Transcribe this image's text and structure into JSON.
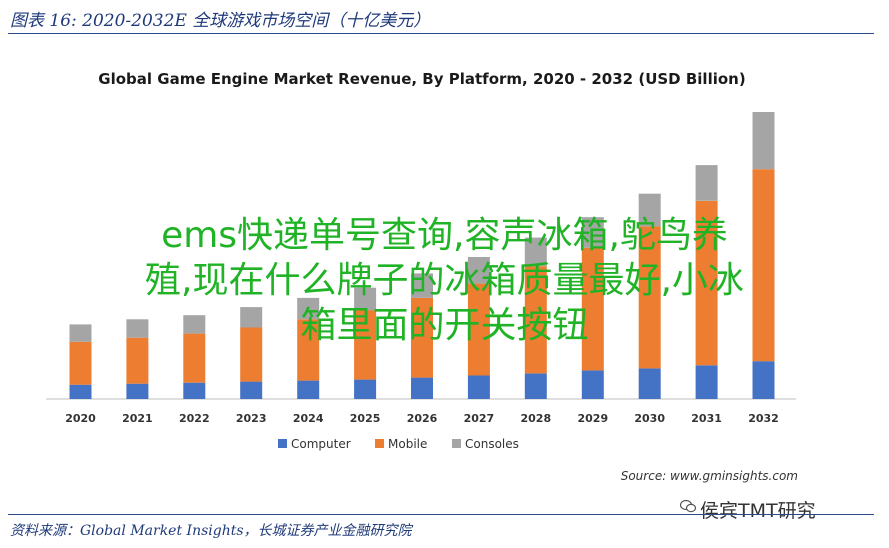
{
  "caption": "图表 16:  2020-2032E 全球游戏市场空间（十亿美元）",
  "source_note": "资料来源：Global Market Insights，长城证券产业金融研究院",
  "overlay": {
    "line1": "ems快递单号查询,容声冰箱,鸵鸟养",
    "line2": "殖,现在什么牌子的冰箱质量最好,小冰",
    "line3": "箱里面的开关按钮"
  },
  "watermark": "侯宾TMT研究",
  "colors": {
    "computer": "#4472c4",
    "mobile": "#ed7d31",
    "consoles": "#a5a5a5"
  },
  "chart_data": {
    "type": "bar",
    "stacked": true,
    "title": "Global Game Engine Market Revenue, By Platform, 2020 - 2032 (USD Billion)",
    "source": "Source: www.gminsights.com",
    "categories": [
      "2020",
      "2021",
      "2022",
      "2023",
      "2024",
      "2025",
      "2026",
      "2027",
      "2028",
      "2029",
      "2030",
      "2031",
      "2032"
    ],
    "series": [
      {
        "name": "Computer",
        "values": [
          1.4,
          1.5,
          1.6,
          1.7,
          1.8,
          1.9,
          2.1,
          2.3,
          2.5,
          2.8,
          3.0,
          3.3,
          3.7
        ]
      },
      {
        "name": "Mobile",
        "values": [
          4.2,
          4.5,
          4.8,
          5.3,
          6.0,
          6.8,
          7.8,
          9.0,
          10.5,
          12.0,
          13.9,
          16.1,
          18.8
        ]
      },
      {
        "name": "Consoles",
        "values": [
          1.7,
          1.8,
          1.8,
          2.0,
          2.1,
          2.2,
          2.4,
          2.6,
          2.8,
          3.0,
          3.2,
          3.5,
          5.6
        ]
      }
    ],
    "legend_position": "bottom",
    "grid": false,
    "ylim": [
      0,
      28.1
    ]
  }
}
